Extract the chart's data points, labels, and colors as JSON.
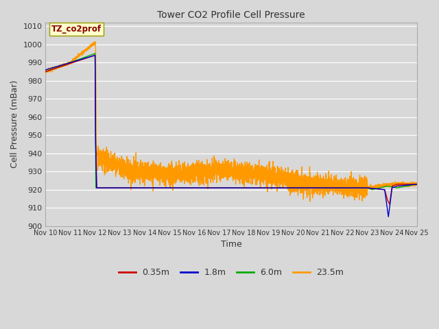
{
  "title": "Tower CO2 Profile Cell Pressure",
  "xlabel": "Time",
  "ylabel": "Cell Pressure (mBar)",
  "ylim": [
    900,
    1012
  ],
  "yticks": [
    900,
    910,
    920,
    930,
    940,
    950,
    960,
    970,
    980,
    990,
    1000,
    1010
  ],
  "bg_color": "#d8d8d8",
  "plot_bg_color": "#d8d8d8",
  "grid_color": "#ffffff",
  "legend_label": "TZ_co2prof",
  "series": {
    "0.35m": {
      "color": "#cc0000",
      "linewidth": 1.0
    },
    "1.8m": {
      "color": "#0000cc",
      "linewidth": 1.0
    },
    "6.0m": {
      "color": "#00aa00",
      "linewidth": 1.0
    },
    "23.5m": {
      "color": "#ff9900",
      "linewidth": 1.0
    }
  },
  "xtick_labels": [
    "Nov 10",
    "Nov 11",
    "Nov 12",
    "Nov 13",
    "Nov 14",
    "Nov 15",
    "Nov 16",
    "Nov 17",
    "Nov 18",
    "Nov 19",
    "Nov 20",
    "Nov 21",
    "Nov 22",
    "Nov 23",
    "Nov 24",
    "Nov 25"
  ]
}
